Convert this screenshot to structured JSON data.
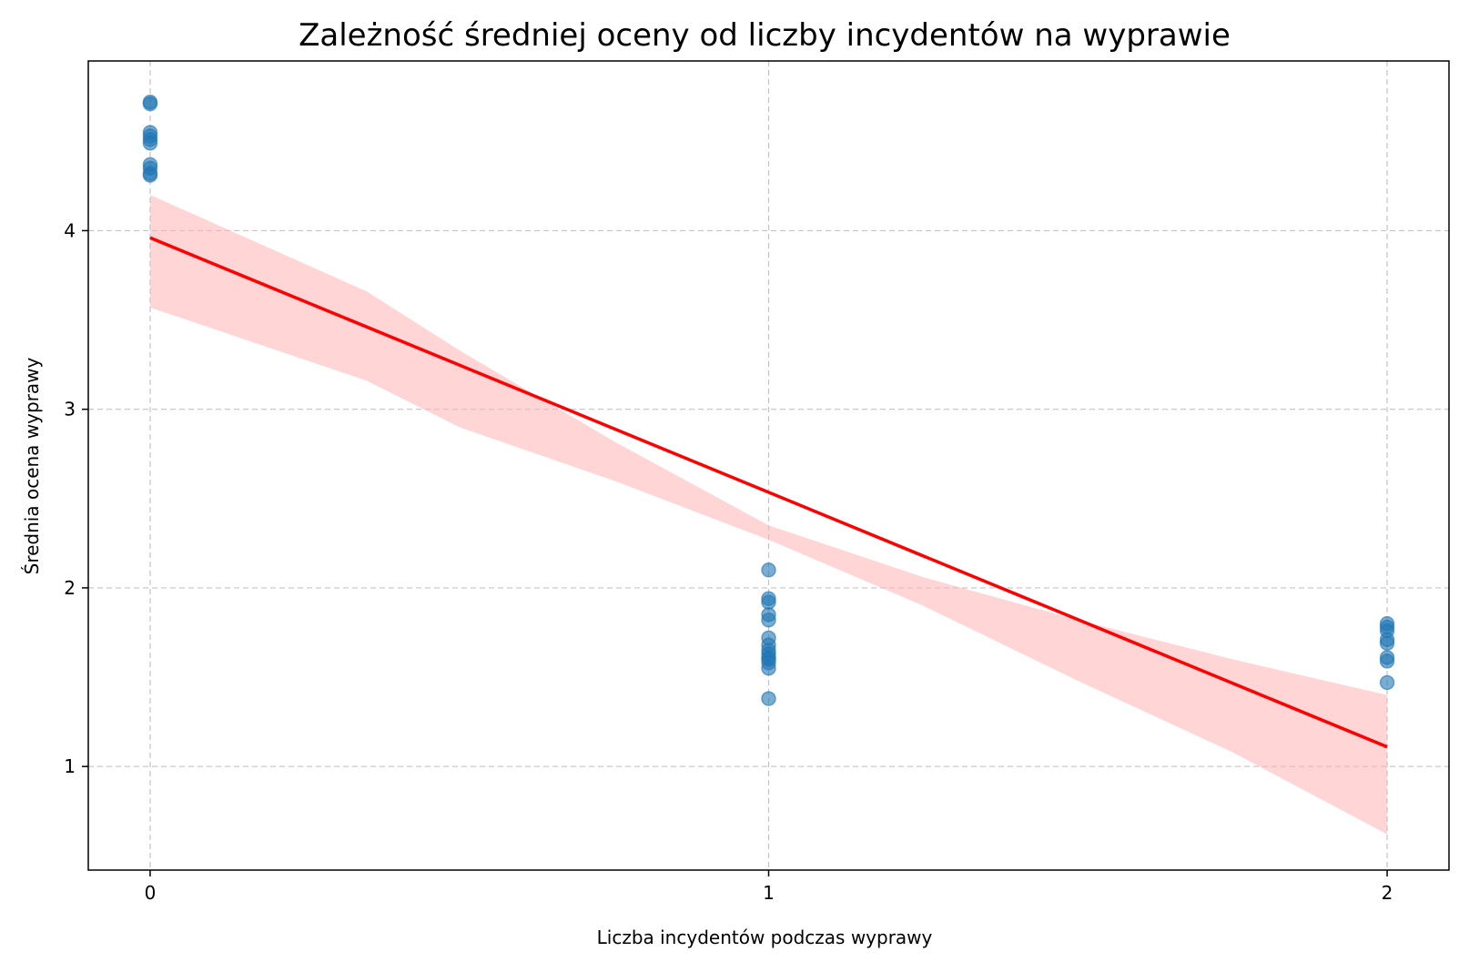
{
  "chart_data": {
    "type": "scatter",
    "title": "Zależność średniej oceny od liczby incydentów na wyprawie",
    "xlabel": "Liczba incydentów podczas wyprawy",
    "ylabel": "Średnia ocena wyprawy",
    "xlim": [
      -0.1,
      2.1
    ],
    "ylim": [
      0.42,
      4.95
    ],
    "xticks": [
      0,
      1,
      2
    ],
    "yticks": [
      1,
      2,
      3,
      4
    ],
    "grid": true,
    "colors": {
      "points": "#1f77b4",
      "line": "#ff0000",
      "band": "#ffb3b3"
    },
    "points": [
      {
        "x": 0,
        "y": 4.72
      },
      {
        "x": 0,
        "y": 4.71
      },
      {
        "x": 0,
        "y": 4.55
      },
      {
        "x": 0,
        "y": 4.53
      },
      {
        "x": 0,
        "y": 4.51
      },
      {
        "x": 0,
        "y": 4.49
      },
      {
        "x": 0,
        "y": 4.37
      },
      {
        "x": 0,
        "y": 4.35
      },
      {
        "x": 0,
        "y": 4.32
      },
      {
        "x": 0,
        "y": 4.31
      },
      {
        "x": 1,
        "y": 2.1
      },
      {
        "x": 1,
        "y": 1.94
      },
      {
        "x": 1,
        "y": 1.92
      },
      {
        "x": 1,
        "y": 1.85
      },
      {
        "x": 1,
        "y": 1.82
      },
      {
        "x": 1,
        "y": 1.72
      },
      {
        "x": 1,
        "y": 1.68
      },
      {
        "x": 1,
        "y": 1.65
      },
      {
        "x": 1,
        "y": 1.63
      },
      {
        "x": 1,
        "y": 1.61
      },
      {
        "x": 1,
        "y": 1.6
      },
      {
        "x": 1,
        "y": 1.58
      },
      {
        "x": 1,
        "y": 1.55
      },
      {
        "x": 1,
        "y": 1.38
      },
      {
        "x": 2,
        "y": 1.8
      },
      {
        "x": 2,
        "y": 1.78
      },
      {
        "x": 2,
        "y": 1.76
      },
      {
        "x": 2,
        "y": 1.71
      },
      {
        "x": 2,
        "y": 1.69
      },
      {
        "x": 2,
        "y": 1.61
      },
      {
        "x": 2,
        "y": 1.59
      },
      {
        "x": 2,
        "y": 1.47
      }
    ],
    "regression": {
      "x": [
        0,
        2
      ],
      "y": [
        3.96,
        1.11
      ]
    },
    "confidence_band": {
      "x": [
        0,
        0.35,
        0.5,
        0.75,
        1.0,
        1.25,
        1.5,
        1.75,
        2.0
      ],
      "upper": [
        4.2,
        3.66,
        3.33,
        2.82,
        2.35,
        2.06,
        1.82,
        1.6,
        1.4
      ],
      "lower": [
        3.57,
        3.16,
        2.9,
        2.6,
        2.27,
        1.9,
        1.48,
        1.08,
        0.62
      ]
    }
  }
}
